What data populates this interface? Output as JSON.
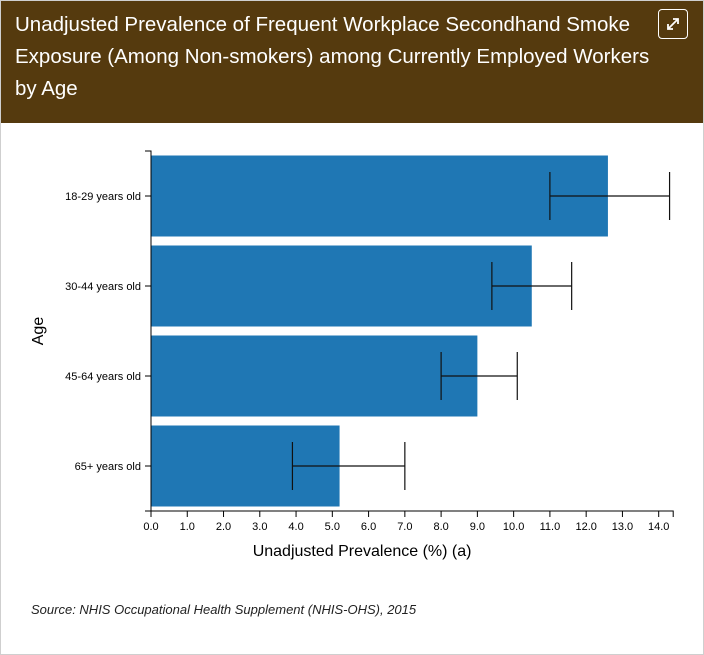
{
  "header": {
    "title": "Unadjusted Prevalence of Frequent Workplace Secondhand Smoke Exposure (Among Non-smokers) among Currently Employed Workers by Age",
    "expand_icon": "expand-arrows-icon",
    "background_color": "#553a0e"
  },
  "footer": {
    "source": "Source: NHIS Occupational Health Supplement (NHIS-OHS), 2015"
  },
  "chart_data": {
    "type": "bar",
    "orientation": "horizontal",
    "title": "Unadjusted Prevalence of Frequent Workplace Secondhand Smoke Exposure (Among Non-smokers) among Currently Employed Workers by Age",
    "xlabel": "Unadjusted Prevalence (%) (a)",
    "ylabel": "Age",
    "xlim": [
      0,
      14.4
    ],
    "x_ticks": [
      "0.0",
      "1.0",
      "2.0",
      "3.0",
      "4.0",
      "5.0",
      "6.0",
      "7.0",
      "8.0",
      "9.0",
      "10.0",
      "11.0",
      "12.0",
      "13.0",
      "14.0"
    ],
    "categories": [
      "18-29 years old",
      "30-44 years old",
      "45-64 years old",
      "65+ years old"
    ],
    "values": [
      12.6,
      10.5,
      9.0,
      5.2
    ],
    "ci_lower": [
      11.0,
      9.4,
      8.0,
      3.9
    ],
    "ci_upper": [
      14.3,
      11.6,
      10.1,
      7.0
    ],
    "bar_color": "#1f77b4",
    "grid": false,
    "legend": "none"
  }
}
